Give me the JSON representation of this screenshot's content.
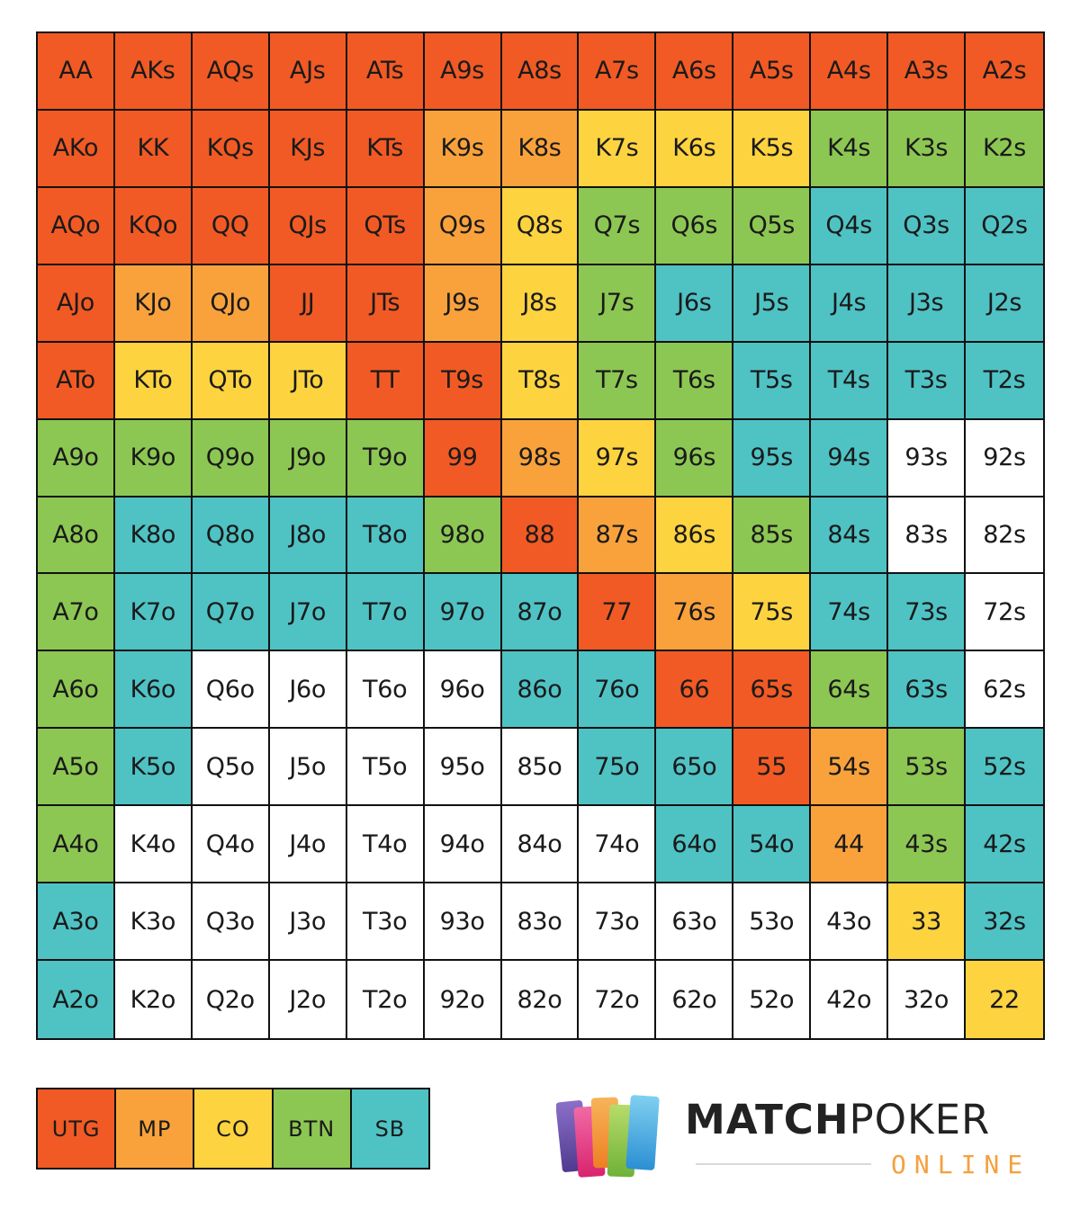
{
  "chart_data": {
    "type": "table",
    "rows": [
      [
        "AA",
        "AKs",
        "AQs",
        "AJs",
        "ATs",
        "A9s",
        "A8s",
        "A7s",
        "A6s",
        "A5s",
        "A4s",
        "A3s",
        "A2s"
      ],
      [
        "AKo",
        "KK",
        "KQs",
        "KJs",
        "KTs",
        "K9s",
        "K8s",
        "K7s",
        "K6s",
        "K5s",
        "K4s",
        "K3s",
        "K2s"
      ],
      [
        "AQo",
        "KQo",
        "QQ",
        "QJs",
        "QTs",
        "Q9s",
        "Q8s",
        "Q7s",
        "Q6s",
        "Q5s",
        "Q4s",
        "Q3s",
        "Q2s"
      ],
      [
        "AJo",
        "KJo",
        "QJo",
        "JJ",
        "JTs",
        "J9s",
        "J8s",
        "J7s",
        "J6s",
        "J5s",
        "J4s",
        "J3s",
        "J2s"
      ],
      [
        "ATo",
        "KTo",
        "QTo",
        "JTo",
        "TT",
        "T9s",
        "T8s",
        "T7s",
        "T6s",
        "T5s",
        "T4s",
        "T3s",
        "T2s"
      ],
      [
        "A9o",
        "K9o",
        "Q9o",
        "J9o",
        "T9o",
        "99",
        "98s",
        "97s",
        "96s",
        "95s",
        "94s",
        "93s",
        "92s"
      ],
      [
        "A8o",
        "K8o",
        "Q8o",
        "J8o",
        "T8o",
        "98o",
        "88",
        "87s",
        "86s",
        "85s",
        "84s",
        "83s",
        "82s"
      ],
      [
        "A7o",
        "K7o",
        "Q7o",
        "J7o",
        "T7o",
        "97o",
        "87o",
        "77",
        "76s",
        "75s",
        "74s",
        "73s",
        "72s"
      ],
      [
        "A6o",
        "K6o",
        "Q6o",
        "J6o",
        "T6o",
        "96o",
        "86o",
        "76o",
        "66",
        "65s",
        "64s",
        "63s",
        "62s"
      ],
      [
        "A5o",
        "K5o",
        "Q5o",
        "J5o",
        "T5o",
        "95o",
        "85o",
        "75o",
        "65o",
        "55",
        "54s",
        "53s",
        "52s"
      ],
      [
        "A4o",
        "K4o",
        "Q4o",
        "J4o",
        "T4o",
        "94o",
        "84o",
        "74o",
        "64o",
        "54o",
        "44",
        "43s",
        "42s"
      ],
      [
        "A3o",
        "K3o",
        "Q3o",
        "J3o",
        "T3o",
        "93o",
        "83o",
        "73o",
        "63o",
        "53o",
        "43o",
        "33",
        "32s"
      ],
      [
        "A2o",
        "K2o",
        "Q2o",
        "J2o",
        "T2o",
        "92o",
        "82o",
        "72o",
        "62o",
        "52o",
        "42o",
        "32o",
        "22"
      ]
    ],
    "positions": [
      [
        "UTG",
        "UTG",
        "UTG",
        "UTG",
        "UTG",
        "UTG",
        "UTG",
        "UTG",
        "UTG",
        "UTG",
        "UTG",
        "UTG",
        "UTG"
      ],
      [
        "UTG",
        "UTG",
        "UTG",
        "UTG",
        "UTG",
        "MP",
        "MP",
        "CO",
        "CO",
        "CO",
        "BTN",
        "BTN",
        "BTN"
      ],
      [
        "UTG",
        "UTG",
        "UTG",
        "UTG",
        "UTG",
        "MP",
        "CO",
        "BTN",
        "BTN",
        "BTN",
        "SB",
        "SB",
        "SB"
      ],
      [
        "UTG",
        "MP",
        "MP",
        "UTG",
        "UTG",
        "MP",
        "CO",
        "BTN",
        "SB",
        "SB",
        "SB",
        "SB",
        "SB"
      ],
      [
        "UTG",
        "CO",
        "CO",
        "CO",
        "UTG",
        "UTG",
        "CO",
        "BTN",
        "BTN",
        "SB",
        "SB",
        "SB",
        "SB"
      ],
      [
        "BTN",
        "BTN",
        "BTN",
        "BTN",
        "BTN",
        "UTG",
        "MP",
        "CO",
        "BTN",
        "SB",
        "SB",
        "",
        ""
      ],
      [
        "BTN",
        "SB",
        "SB",
        "SB",
        "SB",
        "BTN",
        "UTG",
        "MP",
        "CO",
        "BTN",
        "SB",
        "",
        ""
      ],
      [
        "BTN",
        "SB",
        "SB",
        "SB",
        "SB",
        "SB",
        "SB",
        "UTG",
        "MP",
        "CO",
        "SB",
        "SB",
        ""
      ],
      [
        "BTN",
        "SB",
        "",
        "",
        "",
        "",
        "SB",
        "SB",
        "UTG",
        "UTG",
        "BTN",
        "SB",
        ""
      ],
      [
        "BTN",
        "SB",
        "",
        "",
        "",
        "",
        "",
        "SB",
        "SB",
        "UTG",
        "MP",
        "BTN",
        "SB"
      ],
      [
        "BTN",
        "",
        "",
        "",
        "",
        "",
        "",
        "",
        "SB",
        "SB",
        "MP",
        "BTN",
        "SB"
      ],
      [
        "SB",
        "",
        "",
        "",
        "",
        "",
        "",
        "",
        "",
        "",
        "",
        "CO",
        "SB"
      ],
      [
        "SB",
        "",
        "",
        "",
        "",
        "",
        "",
        "",
        "",
        "",
        "",
        "",
        "CO"
      ]
    ],
    "legend": [
      "UTG",
      "MP",
      "CO",
      "BTN",
      "SB"
    ],
    "colors": {
      "UTG": "#f15a24",
      "MP": "#f9a23c",
      "CO": "#fdd340",
      "BTN": "#8dc753",
      "SB": "#4fc2c4",
      "": "#ffffff"
    }
  },
  "logo": {
    "main_bold": "MATCH",
    "main_light": "POKER",
    "sub": "ONLINE"
  }
}
